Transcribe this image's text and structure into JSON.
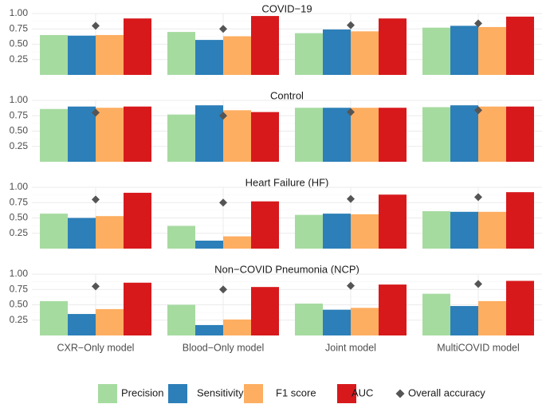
{
  "chart_data": {
    "type": "bar",
    "categories": [
      "CXR−Only model",
      "Blood−Only model",
      "Joint model",
      "MultiCOVID model"
    ],
    "metrics": [
      "Precision",
      "Sensitivity",
      "F1 score",
      "AUC"
    ],
    "point_series": "Overall accuracy",
    "colors": {
      "Precision": "#a6dba0",
      "Sensitivity": "#2c7fb8",
      "F1 score": "#fdae61",
      "AUC": "#d7191c",
      "Overall accuracy": "#555555"
    },
    "ylim": [
      0,
      1
    ],
    "yticks": [
      "0.25",
      "0.50",
      "0.75",
      "1.00"
    ],
    "ytick_values": [
      0.25,
      0.5,
      0.75,
      1.0
    ],
    "facets": [
      {
        "title": "COVID−19",
        "series": [
          {
            "name": "Precision",
            "values": [
              0.65,
              0.7,
              0.68,
              0.77
            ]
          },
          {
            "name": "Sensitivity",
            "values": [
              0.64,
              0.57,
              0.74,
              0.8
            ]
          },
          {
            "name": "F1 score",
            "values": [
              0.65,
              0.63,
              0.71,
              0.78
            ]
          },
          {
            "name": "AUC",
            "values": [
              0.92,
              0.96,
              0.92,
              0.95
            ]
          }
        ],
        "accuracy": [
          0.8,
          0.75,
          0.81,
          0.84
        ]
      },
      {
        "title": "Control",
        "series": [
          {
            "name": "Precision",
            "values": [
              0.86,
              0.77,
              0.88,
              0.89
            ]
          },
          {
            "name": "Sensitivity",
            "values": [
              0.9,
              0.92,
              0.88,
              0.92
            ]
          },
          {
            "name": "F1 score",
            "values": [
              0.88,
              0.84,
              0.88,
              0.9
            ]
          },
          {
            "name": "AUC",
            "values": [
              0.9,
              0.81,
              0.88,
              0.9
            ]
          }
        ],
        "accuracy": [
          0.8,
          0.75,
          0.81,
          0.84
        ]
      },
      {
        "title": "Heart Failure (HF)",
        "series": [
          {
            "name": "Precision",
            "values": [
              0.57,
              0.37,
              0.55,
              0.61
            ]
          },
          {
            "name": "Sensitivity",
            "values": [
              0.5,
              0.13,
              0.57,
              0.6
            ]
          },
          {
            "name": "F1 score",
            "values": [
              0.53,
              0.2,
              0.56,
              0.6
            ]
          },
          {
            "name": "AUC",
            "values": [
              0.91,
              0.77,
              0.88,
              0.92
            ]
          }
        ],
        "accuracy": [
          0.8,
          0.75,
          0.81,
          0.84
        ]
      },
      {
        "title": "Non−COVID Pneumonia (NCP)",
        "series": [
          {
            "name": "Precision",
            "values": [
              0.56,
              0.5,
              0.52,
              0.68
            ]
          },
          {
            "name": "Sensitivity",
            "values": [
              0.35,
              0.17,
              0.42,
              0.48
            ]
          },
          {
            "name": "F1 score",
            "values": [
              0.43,
              0.26,
              0.45,
              0.56
            ]
          },
          {
            "name": "AUC",
            "values": [
              0.86,
              0.79,
              0.83,
              0.89
            ]
          }
        ],
        "accuracy": [
          0.8,
          0.75,
          0.81,
          0.84
        ]
      }
    ],
    "legend": [
      "Precision",
      "Sensitivity",
      "F1 score",
      "AUC",
      "Overall accuracy"
    ],
    "legend_position": "bottom"
  }
}
